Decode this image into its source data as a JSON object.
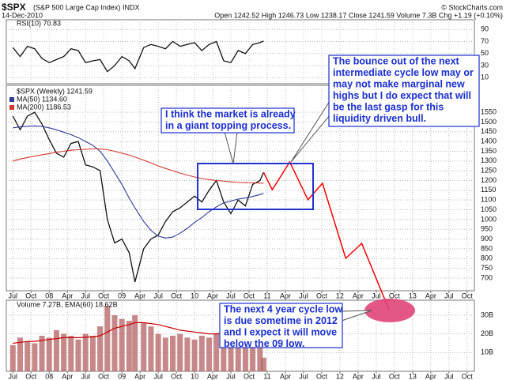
{
  "chart_data": [
    {
      "type": "line",
      "xlim": [
        2007.41,
        2013.85
      ],
      "ylim": [
        0,
        106
      ],
      "yticks": [
        10,
        30,
        50,
        70,
        90
      ],
      "grid": true,
      "x": [
        2007.5,
        2007.6,
        2007.7,
        2007.8,
        2007.9,
        2008.0,
        2008.1,
        2008.2,
        2008.3,
        2008.4,
        2008.5,
        2008.6,
        2008.7,
        2008.8,
        2008.9,
        2009.0,
        2009.1,
        2009.18,
        2009.3,
        2009.4,
        2009.5,
        2009.6,
        2009.7,
        2009.8,
        2009.9,
        2010.0,
        2010.1,
        2010.2,
        2010.3,
        2010.4,
        2010.5,
        2010.6,
        2010.7,
        2010.8,
        2010.9,
        2010.95
      ],
      "series": [
        {
          "name": "RSI(10) 70.83",
          "color": "#111111",
          "values": [
            60,
            45,
            62,
            58,
            42,
            35,
            40,
            45,
            58,
            55,
            35,
            38,
            40,
            20,
            30,
            45,
            38,
            25,
            60,
            65,
            62,
            58,
            70,
            62,
            65,
            68,
            55,
            65,
            70,
            38,
            35,
            55,
            50,
            65,
            68,
            70.83
          ]
        }
      ]
    },
    {
      "type": "line",
      "title": "$SPX",
      "subtitle": "(S&P 500 Large Cap Index)",
      "exchange": "INDX",
      "credit": "© StockCharts.com",
      "date": "14-Dec-2010",
      "quote": "Open 1242.52 High 1246.73 Low 1238.17 Close 1241.59 Volume 7.3B Chg +1.19 (+0.10%)",
      "xlim": [
        2007.41,
        2013.85
      ],
      "ylim": [
        635,
        1688
      ],
      "grid": true,
      "yticks": [
        700,
        750,
        800,
        850,
        900,
        950,
        1000,
        1050,
        1100,
        1150,
        1200,
        1250,
        1300,
        1350,
        1400,
        1450,
        1500,
        1550
      ],
      "xticks": [
        {
          "value": 2007.5,
          "label": "Jul"
        },
        {
          "value": 2007.75,
          "label": "Oct"
        },
        {
          "value": 2008,
          "label": "08"
        },
        {
          "value": 2008.25,
          "label": "Apr"
        },
        {
          "value": 2008.5,
          "label": "Jul"
        },
        {
          "value": 2008.75,
          "label": "Oct"
        },
        {
          "value": 2009,
          "label": "09"
        },
        {
          "value": 2009.25,
          "label": "Apr"
        },
        {
          "value": 2009.5,
          "label": "Jul"
        },
        {
          "value": 2009.75,
          "label": "Oct"
        },
        {
          "value": 2010,
          "label": "10"
        },
        {
          "value": 2010.25,
          "label": "Apr"
        },
        {
          "value": 2010.5,
          "label": "Jul"
        },
        {
          "value": 2010.75,
          "label": "Oct"
        },
        {
          "value": 2011,
          "label": "11"
        },
        {
          "value": 2011.25,
          "label": "Apr"
        },
        {
          "value": 2011.5,
          "label": "Jul"
        },
        {
          "value": 2011.75,
          "label": "Oct"
        },
        {
          "value": 2012,
          "label": "12"
        },
        {
          "value": 2012.25,
          "label": "Apr"
        },
        {
          "value": 2012.5,
          "label": "Jul"
        },
        {
          "value": 2012.75,
          "label": "Oct"
        },
        {
          "value": 2013,
          "label": "13"
        },
        {
          "value": 2013.25,
          "label": "Apr"
        },
        {
          "value": 2013.5,
          "label": "Jul"
        },
        {
          "value": 2013.75,
          "label": "Oct"
        }
      ],
      "x": [
        2007.5,
        2007.6,
        2007.7,
        2007.8,
        2007.9,
        2008.0,
        2008.1,
        2008.2,
        2008.3,
        2008.4,
        2008.5,
        2008.6,
        2008.7,
        2008.8,
        2008.9,
        2009.0,
        2009.1,
        2009.18,
        2009.3,
        2009.4,
        2009.5,
        2009.6,
        2009.7,
        2009.8,
        2009.9,
        2010.0,
        2010.1,
        2010.2,
        2010.3,
        2010.4,
        2010.5,
        2010.6,
        2010.7,
        2010.8,
        2010.9,
        2010.95
      ],
      "series": [
        {
          "name": "$SPX (Weekly) 1241.59",
          "color": "#111111",
          "values": [
            1530,
            1460,
            1530,
            1550,
            1490,
            1410,
            1340,
            1320,
            1390,
            1400,
            1280,
            1270,
            1250,
            1000,
            880,
            900,
            830,
            680,
            850,
            900,
            920,
            990,
            1040,
            1060,
            1090,
            1120,
            1090,
            1150,
            1200,
            1090,
            1030,
            1100,
            1070,
            1180,
            1200,
            1241.59
          ]
        },
        {
          "name": "MA(50) 1134.60",
          "color": "#2f3a9a",
          "values": [
            1470,
            1475,
            1478,
            1480,
            1478,
            1470,
            1460,
            1448,
            1435,
            1420,
            1400,
            1380,
            1350,
            1300,
            1240,
            1180,
            1110,
            1060,
            990,
            945,
            915,
            905,
            910,
            930,
            955,
            985,
            1010,
            1040,
            1065,
            1085,
            1095,
            1105,
            1110,
            1118,
            1128,
            1134.6
          ]
        },
        {
          "name": "MA(200) 1186.53",
          "color": "#d2392b",
          "values": [
            1300,
            1310,
            1318,
            1325,
            1332,
            1338,
            1345,
            1350,
            1355,
            1358,
            1360,
            1362,
            1362,
            1358,
            1350,
            1340,
            1330,
            1320,
            1305,
            1290,
            1275,
            1262,
            1250,
            1238,
            1228,
            1218,
            1210,
            1205,
            1200,
            1197,
            1193,
            1190,
            1189,
            1188,
            1187,
            1186.53
          ]
        }
      ],
      "projection": {
        "color": "#ff0000",
        "x": [
          2010.95,
          2011.07,
          2011.31,
          2011.56,
          2011.76,
          2012.08,
          2012.3,
          2012.68
        ],
        "values": [
          1241.59,
          1153,
          1295,
          1101,
          1186,
          801,
          878,
          534
        ]
      },
      "annotations": [
        [
          "I think the market is already",
          "in a giant topping process."
        ],
        [
          "The bounce out of the next",
          "intermediate cycle low may or",
          "may not make marginal new",
          "highs but I do expect that will",
          "be the last gasp for this",
          "liquidity driven bull."
        ],
        [
          "The next 4 year cycle low",
          "is due sometime in 2012",
          "and I expect it will move",
          "below the 09 low."
        ]
      ]
    },
    {
      "type": "bar",
      "title": "Volume 7.27B, EMA(60) 18.62B",
      "xlim": [
        2007.41,
        2013.85
      ],
      "ylim": [
        0,
        38
      ],
      "grid": true,
      "yticks": [
        {
          "value": 10,
          "label": "10B"
        },
        {
          "value": 20,
          "label": "20B"
        },
        {
          "value": 30,
          "label": "30B"
        }
      ],
      "xticks": [
        {
          "value": 2007.5,
          "label": "Jul"
        },
        {
          "value": 2007.75,
          "label": "Oct"
        },
        {
          "value": 2008,
          "label": "08"
        },
        {
          "value": 2008.25,
          "label": "Apr"
        },
        {
          "value": 2008.5,
          "label": "Jul"
        },
        {
          "value": 2008.75,
          "label": "Oct"
        },
        {
          "value": 2009,
          "label": "09"
        },
        {
          "value": 2009.25,
          "label": "Apr"
        },
        {
          "value": 2009.5,
          "label": "Jul"
        },
        {
          "value": 2009.75,
          "label": "Oct"
        },
        {
          "value": 2010,
          "label": "10"
        },
        {
          "value": 2010.25,
          "label": "Apr"
        },
        {
          "value": 2010.5,
          "label": "Jul"
        },
        {
          "value": 2010.75,
          "label": "Oct"
        },
        {
          "value": 2011,
          "label": "11"
        },
        {
          "value": 2011.25,
          "label": "Apr"
        },
        {
          "value": 2011.5,
          "label": "Jul"
        },
        {
          "value": 2011.75,
          "label": "Oct"
        },
        {
          "value": 2012,
          "label": "12"
        },
        {
          "value": 2012.25,
          "label": "Apr"
        },
        {
          "value": 2012.5,
          "label": "Jul"
        },
        {
          "value": 2012.75,
          "label": "Oct"
        },
        {
          "value": 2013,
          "label": "13"
        },
        {
          "value": 2013.25,
          "label": "Apr"
        },
        {
          "value": 2013.5,
          "label": "Jul"
        },
        {
          "value": 2013.75,
          "label": "Oct"
        }
      ],
      "x": [
        2007.5,
        2007.6,
        2007.7,
        2007.8,
        2007.9,
        2008.0,
        2008.1,
        2008.2,
        2008.3,
        2008.4,
        2008.5,
        2008.6,
        2008.7,
        2008.8,
        2008.9,
        2009.0,
        2009.1,
        2009.18,
        2009.3,
        2009.4,
        2009.5,
        2009.6,
        2009.7,
        2009.8,
        2009.9,
        2010.0,
        2010.1,
        2010.2,
        2010.3,
        2010.4,
        2010.5,
        2010.6,
        2010.7,
        2010.8,
        2010.9,
        2010.95
      ],
      "series": [
        {
          "color": "#b86a6a",
          "values": [
            14,
            18,
            16,
            15,
            19,
            18,
            22,
            20,
            19,
            17,
            20,
            19,
            24,
            35,
            30,
            28,
            27,
            30,
            26,
            24,
            20,
            18,
            19,
            20,
            18,
            17,
            19,
            18,
            20,
            26,
            22,
            17,
            16,
            18,
            17,
            7.27
          ]
        },
        {
          "color": "#cc0000",
          "values": [
            15,
            15.5,
            16,
            16,
            16.5,
            17,
            17.5,
            18,
            18,
            18,
            18.2,
            18.4,
            19,
            21,
            23,
            24,
            25,
            26,
            26,
            25.5,
            25,
            24,
            23,
            22,
            21.5,
            21,
            20.5,
            20,
            20,
            20.5,
            20.5,
            20,
            19.5,
            19.2,
            18.9,
            18.62
          ]
        }
      ]
    }
  ]
}
